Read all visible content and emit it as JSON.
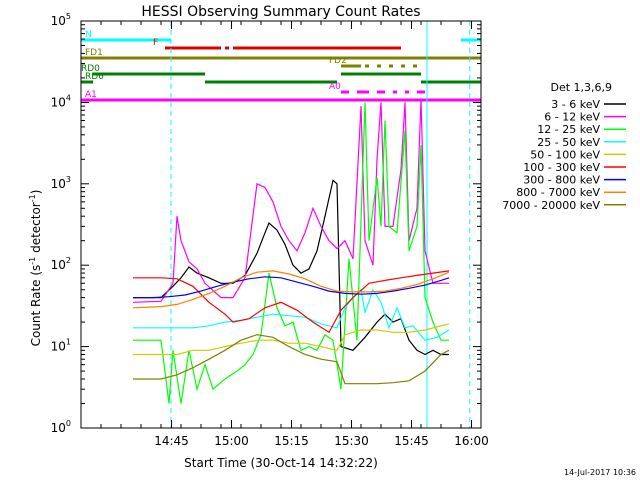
{
  "chart_data": {
    "type": "line",
    "title": "HESSI Observing Summary Count Rates",
    "xlabel": "Start Time (30-Oct-14 14:32:22)",
    "ylabel_main": "Count Rate (s",
    "ylabel_sup": "-1",
    "ylabel_tail": " detector",
    "ylabel_sup2": "-1",
    "ylabel_close": ")",
    "ylog": true,
    "ylim": [
      1,
      100000
    ],
    "xlim_minutes": [
      -10,
      90
    ],
    "x_ticks": [
      {
        "m": 12.63,
        "label": "14:45"
      },
      {
        "m": 27.63,
        "label": "15:00"
      },
      {
        "m": 42.63,
        "label": "15:15"
      },
      {
        "m": 57.63,
        "label": "15:30"
      },
      {
        "m": 72.63,
        "label": "15:45"
      },
      {
        "m": 87.63,
        "label": "16:00"
      }
    ],
    "y_ticks": [
      {
        "v": 1,
        "base": "10",
        "exp": "0"
      },
      {
        "v": 10,
        "base": "10",
        "exp": "1"
      },
      {
        "v": 100,
        "base": "10",
        "exp": "2"
      },
      {
        "v": 1000,
        "base": "10",
        "exp": "3"
      },
      {
        "v": 10000,
        "base": "10",
        "exp": "4"
      },
      {
        "v": 100000,
        "base": "10",
        "exp": "5"
      }
    ],
    "legend_title": "Det 1,3,6,9",
    "series": [
      {
        "name": "3 - 6 keV",
        "color": "#000000",
        "points": [
          [
            3,
            40
          ],
          [
            6,
            40
          ],
          [
            10,
            40
          ],
          [
            13,
            55
          ],
          [
            15,
            70
          ],
          [
            17,
            95
          ],
          [
            19,
            80
          ],
          [
            22,
            70
          ],
          [
            25,
            60
          ],
          [
            28,
            60
          ],
          [
            31,
            75
          ],
          [
            34,
            140
          ],
          [
            36,
            250
          ],
          [
            37,
            330
          ],
          [
            39,
            270
          ],
          [
            41,
            180
          ],
          [
            43,
            100
          ],
          [
            45,
            80
          ],
          [
            47,
            90
          ],
          [
            49,
            150
          ],
          [
            51,
            400
          ],
          [
            53,
            1100
          ],
          [
            54,
            1000
          ],
          [
            55,
            10
          ],
          [
            58,
            9
          ],
          [
            61,
            13
          ],
          [
            64,
            20
          ],
          [
            66,
            25
          ],
          [
            68,
            20
          ],
          [
            70,
            22
          ],
          [
            72,
            12
          ],
          [
            74,
            9
          ],
          [
            76,
            8
          ],
          [
            78,
            9
          ],
          [
            80,
            8
          ],
          [
            82,
            8
          ]
        ]
      },
      {
        "name": "6 - 12 keV",
        "color": "#ff00ff",
        "points": [
          [
            3,
            35
          ],
          [
            10,
            36
          ],
          [
            13,
            60
          ],
          [
            14,
            400
          ],
          [
            15,
            200
          ],
          [
            17,
            110
          ],
          [
            19,
            90
          ],
          [
            21,
            60
          ],
          [
            25,
            40
          ],
          [
            28,
            40
          ],
          [
            31,
            70
          ],
          [
            34,
            1000
          ],
          [
            36,
            900
          ],
          [
            38,
            600
          ],
          [
            40,
            300
          ],
          [
            42,
            200
          ],
          [
            44,
            150
          ],
          [
            46,
            250
          ],
          [
            48,
            500
          ],
          [
            50,
            300
          ],
          [
            52,
            200
          ],
          [
            54,
            160
          ],
          [
            56,
            200
          ],
          [
            58,
            120
          ],
          [
            60,
            9000
          ],
          [
            61,
            200
          ],
          [
            63,
            100
          ],
          [
            64,
            2000
          ],
          [
            65,
            10000
          ],
          [
            66,
            300
          ],
          [
            68,
            300
          ],
          [
            70,
            1500
          ],
          [
            71,
            10000
          ],
          [
            72,
            200
          ],
          [
            74,
            500
          ],
          [
            75,
            11000
          ],
          [
            76,
            150
          ],
          [
            78,
            60
          ],
          [
            82,
            60
          ]
        ]
      },
      {
        "name": "12 - 25 keV",
        "color": "#00ff00",
        "points": [
          [
            3,
            12
          ],
          [
            10,
            12
          ],
          [
            12,
            2
          ],
          [
            13,
            9
          ],
          [
            15,
            2
          ],
          [
            17,
            9
          ],
          [
            19,
            3
          ],
          [
            21,
            6
          ],
          [
            23,
            3
          ],
          [
            26,
            4
          ],
          [
            29,
            5
          ],
          [
            31,
            6
          ],
          [
            33,
            8
          ],
          [
            35,
            14
          ],
          [
            37,
            80
          ],
          [
            39,
            30
          ],
          [
            41,
            18
          ],
          [
            43,
            20
          ],
          [
            45,
            9
          ],
          [
            47,
            10
          ],
          [
            49,
            9
          ],
          [
            51,
            14
          ],
          [
            53,
            12
          ],
          [
            55,
            3
          ],
          [
            57,
            120
          ],
          [
            59,
            12
          ],
          [
            61,
            10000
          ],
          [
            62,
            200
          ],
          [
            64,
            1200
          ],
          [
            65,
            300
          ],
          [
            66,
            6000
          ],
          [
            67,
            300
          ],
          [
            69,
            250
          ],
          [
            71,
            4500
          ],
          [
            72,
            150
          ],
          [
            74,
            300
          ],
          [
            75,
            3000
          ],
          [
            76,
            40
          ],
          [
            78,
            20
          ],
          [
            80,
            12
          ],
          [
            82,
            12
          ]
        ]
      },
      {
        "name": "25 - 50 keV",
        "color": "#00ffff",
        "points": [
          [
            3,
            17
          ],
          [
            10,
            17
          ],
          [
            14,
            17
          ],
          [
            18,
            17
          ],
          [
            22,
            18
          ],
          [
            26,
            20
          ],
          [
            30,
            21
          ],
          [
            34,
            23
          ],
          [
            38,
            25
          ],
          [
            42,
            24
          ],
          [
            46,
            23
          ],
          [
            50,
            19
          ],
          [
            54,
            17
          ],
          [
            56,
            30
          ],
          [
            58,
            40
          ],
          [
            60,
            50
          ],
          [
            61,
            26
          ],
          [
            63,
            50
          ],
          [
            65,
            35
          ],
          [
            67,
            17
          ],
          [
            69,
            30
          ],
          [
            71,
            17
          ],
          [
            73,
            18
          ],
          [
            76,
            12
          ],
          [
            79,
            13
          ],
          [
            82,
            16
          ]
        ]
      },
      {
        "name": "50 - 100 keV",
        "color": "#cccc00",
        "points": [
          [
            3,
            8
          ],
          [
            10,
            8
          ],
          [
            14,
            8
          ],
          [
            18,
            9
          ],
          [
            22,
            9
          ],
          [
            26,
            10
          ],
          [
            30,
            11
          ],
          [
            34,
            12
          ],
          [
            38,
            12
          ],
          [
            42,
            11
          ],
          [
            46,
            11
          ],
          [
            50,
            10
          ],
          [
            54,
            9
          ],
          [
            56,
            14
          ],
          [
            60,
            16
          ],
          [
            64,
            16
          ],
          [
            68,
            15
          ],
          [
            72,
            15
          ],
          [
            76,
            16
          ],
          [
            80,
            18
          ],
          [
            82,
            19
          ]
        ]
      },
      {
        "name": "100 - 300 keV",
        "color": "#ff0000",
        "points": [
          [
            3,
            70
          ],
          [
            10,
            70
          ],
          [
            14,
            68
          ],
          [
            18,
            55
          ],
          [
            22,
            35
          ],
          [
            26,
            25
          ],
          [
            28,
            20
          ],
          [
            32,
            22
          ],
          [
            36,
            30
          ],
          [
            40,
            35
          ],
          [
            44,
            28
          ],
          [
            48,
            20
          ],
          [
            52,
            15
          ],
          [
            55,
            28
          ],
          [
            58,
            40
          ],
          [
            62,
            60
          ],
          [
            66,
            65
          ],
          [
            70,
            70
          ],
          [
            74,
            75
          ],
          [
            78,
            80
          ],
          [
            82,
            85
          ]
        ]
      },
      {
        "name": "300 - 800 keV",
        "color": "#0000ff",
        "points": [
          [
            3,
            40
          ],
          [
            8,
            40
          ],
          [
            12,
            41
          ],
          [
            16,
            43
          ],
          [
            20,
            48
          ],
          [
            24,
            55
          ],
          [
            28,
            62
          ],
          [
            32,
            68
          ],
          [
            36,
            72
          ],
          [
            40,
            70
          ],
          [
            44,
            62
          ],
          [
            48,
            55
          ],
          [
            52,
            48
          ],
          [
            56,
            45
          ],
          [
            60,
            44
          ],
          [
            64,
            45
          ],
          [
            68,
            48
          ],
          [
            72,
            52
          ],
          [
            76,
            57
          ],
          [
            80,
            65
          ],
          [
            82,
            70
          ]
        ]
      },
      {
        "name": "800 - 7000 keV",
        "color": "#ff8000",
        "points": [
          [
            3,
            30
          ],
          [
            10,
            31
          ],
          [
            14,
            33
          ],
          [
            18,
            38
          ],
          [
            22,
            45
          ],
          [
            26,
            55
          ],
          [
            30,
            70
          ],
          [
            34,
            82
          ],
          [
            38,
            85
          ],
          [
            42,
            78
          ],
          [
            46,
            68
          ],
          [
            50,
            55
          ],
          [
            54,
            48
          ],
          [
            58,
            47
          ],
          [
            62,
            47
          ],
          [
            66,
            48
          ],
          [
            70,
            52
          ],
          [
            74,
            58
          ],
          [
            78,
            68
          ],
          [
            82,
            82
          ]
        ]
      },
      {
        "name": "7000 - 20000 keV",
        "color": "#808000",
        "points": [
          [
            3,
            4
          ],
          [
            10,
            4
          ],
          [
            14,
            4.5
          ],
          [
            18,
            5.5
          ],
          [
            22,
            7
          ],
          [
            26,
            9
          ],
          [
            30,
            12
          ],
          [
            34,
            14
          ],
          [
            38,
            13
          ],
          [
            42,
            10
          ],
          [
            46,
            8
          ],
          [
            50,
            7
          ],
          [
            54,
            6.5
          ],
          [
            56,
            3.5
          ],
          [
            60,
            3.5
          ],
          [
            64,
            3.5
          ],
          [
            68,
            3.6
          ],
          [
            72,
            3.8
          ],
          [
            76,
            5
          ],
          [
            80,
            8
          ],
          [
            82,
            9
          ]
        ]
      }
    ],
    "flag_bars": [
      {
        "name": "N",
        "label": "N",
        "color": "#00ffff",
        "segments": [
          [
            -10,
            12.5
          ],
          [
            85,
            90
          ]
        ]
      },
      {
        "name": "F",
        "label": "F",
        "color": "#dd0000",
        "segments": [
          [
            11,
            25
          ],
          [
            26,
            27
          ],
          [
            28,
            70
          ]
        ]
      },
      {
        "name": "FD1",
        "label": "FD1",
        "color": "#808000",
        "segments": [
          [
            -10,
            90
          ]
        ]
      },
      {
        "name": "FD2",
        "label": "FD2",
        "color": "#808000",
        "segments": [
          [
            55,
            60
          ],
          [
            61,
            62
          ],
          [
            64,
            65
          ],
          [
            67,
            68
          ],
          [
            70,
            71
          ],
          [
            73,
            74
          ]
        ]
      },
      {
        "name": "RD0",
        "label": "RD0",
        "color": "#008000",
        "segments": [
          [
            -7,
            21
          ],
          [
            55,
            75
          ]
        ]
      },
      {
        "name": "RD6",
        "label": "RD6",
        "color": "#008000",
        "segments": [
          [
            -10,
            -7
          ],
          [
            21,
            54
          ],
          [
            75,
            90
          ]
        ]
      },
      {
        "name": "A0",
        "label": "A0",
        "color": "#ff00ff",
        "segments": [
          [
            55,
            57
          ],
          [
            59,
            62
          ],
          [
            64,
            66
          ],
          [
            68,
            69
          ],
          [
            71,
            72
          ],
          [
            74,
            76
          ]
        ]
      },
      {
        "name": "A1",
        "label": "A1",
        "color": "#ff00ff",
        "segments": [
          [
            -10,
            90
          ]
        ]
      }
    ],
    "vlines": [
      {
        "m": 12.5,
        "color": "#00ffff",
        "style": "dashed"
      },
      {
        "m": 76.5,
        "color": "#00ffff",
        "style": "solid"
      },
      {
        "m": 87.2,
        "color": "#00ffff",
        "style": "dashed"
      }
    ],
    "footer_date": "14-Jul-2017 10:36"
  }
}
